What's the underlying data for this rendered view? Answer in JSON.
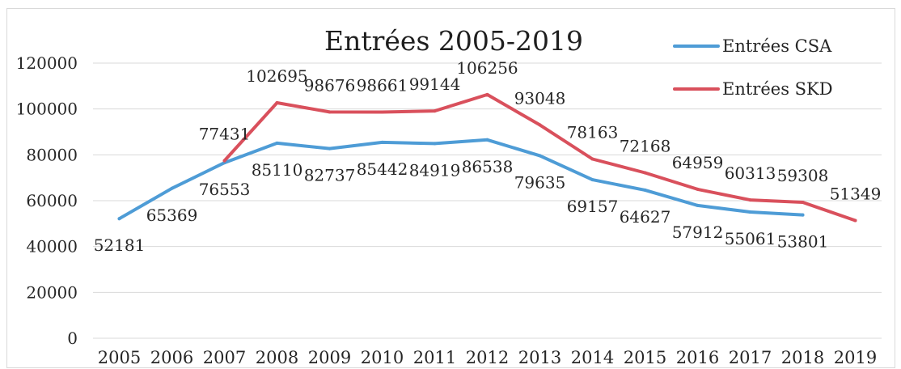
{
  "chart_data": {
    "type": "line",
    "title": "Entrées 2005-2019",
    "categories": [
      "2005",
      "2006",
      "2007",
      "2008",
      "2009",
      "2010",
      "2011",
      "2012",
      "2013",
      "2014",
      "2015",
      "2016",
      "2017",
      "2018",
      "2019"
    ],
    "ylim": [
      0,
      120000
    ],
    "yticks": [
      0,
      20000,
      40000,
      60000,
      80000,
      100000,
      120000
    ],
    "grid": true,
    "legend": "top-right",
    "series": [
      {
        "name": "Entrées CSA",
        "color": "#4e9cd6",
        "values": [
          52181,
          65369,
          76553,
          85110,
          82737,
          85442,
          84919,
          86538,
          79635,
          69157,
          64627,
          57912,
          55061,
          53801,
          null
        ]
      },
      {
        "name": "Entrées SKD",
        "color": "#d9505c",
        "values": [
          null,
          null,
          77431,
          102695,
          98676,
          98661,
          99144,
          106256,
          93048,
          78163,
          72168,
          64959,
          60313,
          59308,
          51349
        ]
      }
    ]
  }
}
